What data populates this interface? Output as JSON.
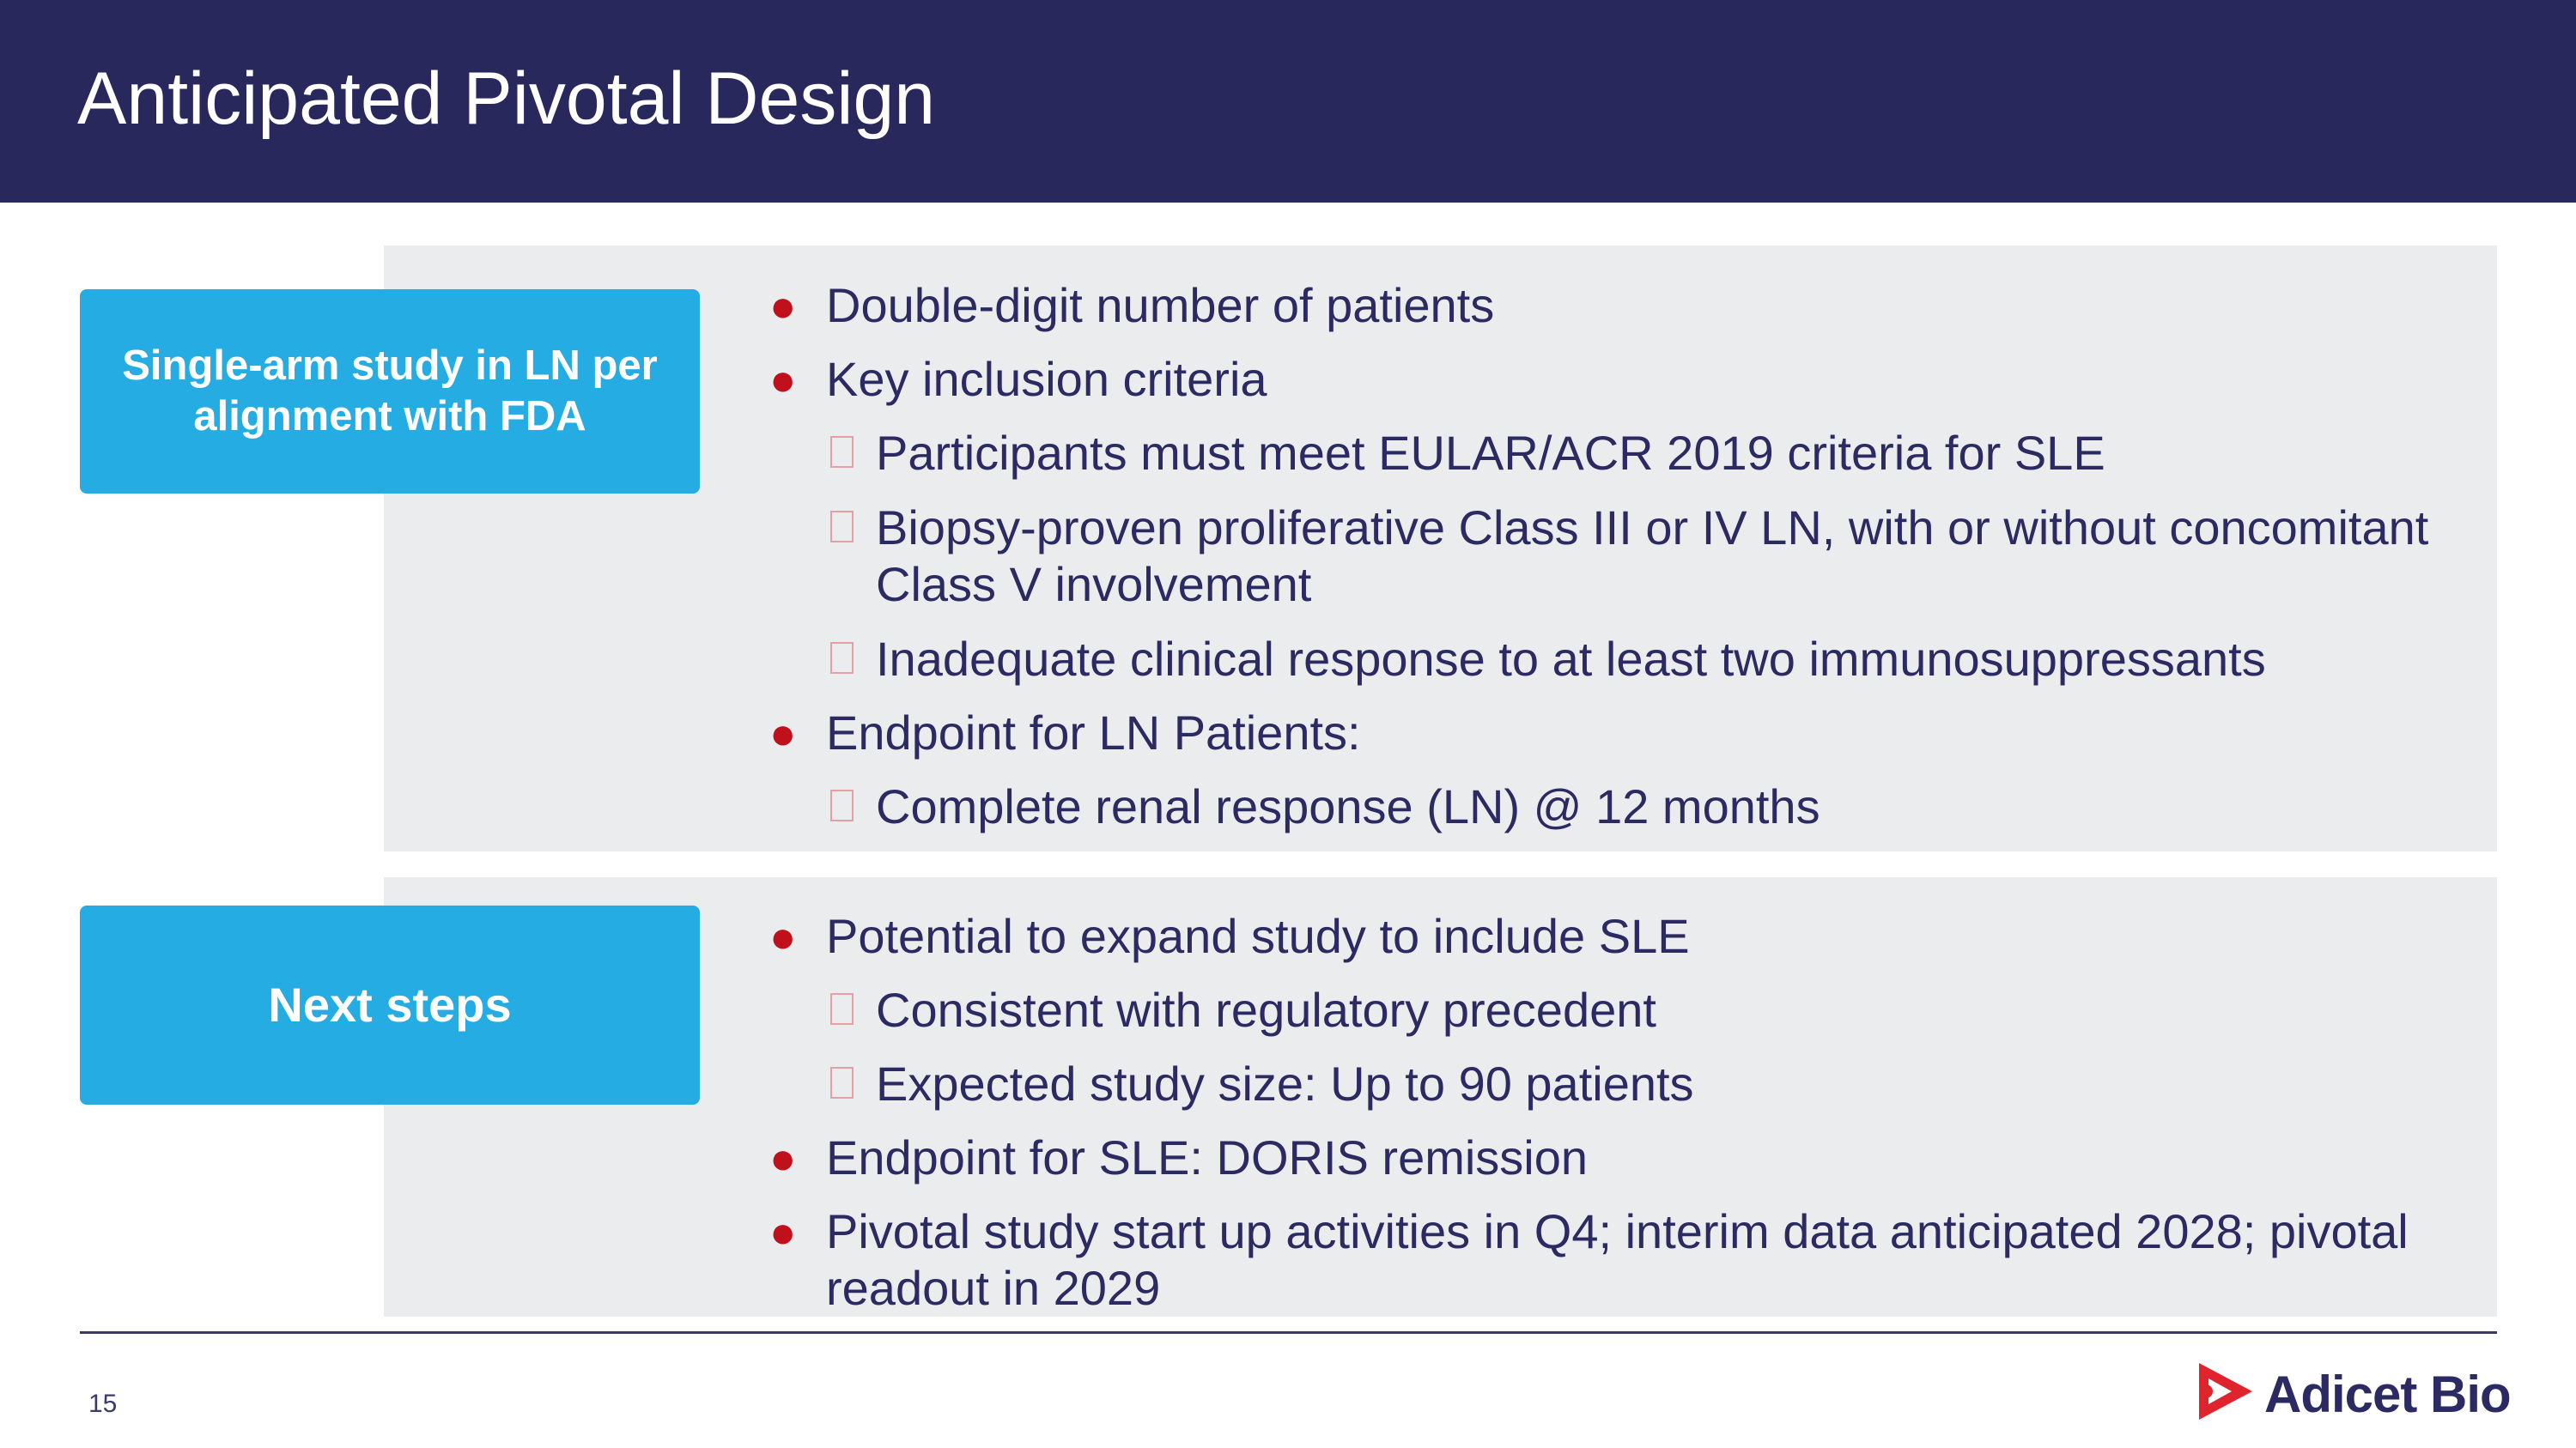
{
  "header": {
    "title": "Anticipated Pivotal Design"
  },
  "section1": {
    "label": "Single-arm study in LN per alignment with FDA",
    "items": [
      {
        "level": 1,
        "text": "Double-digit number of patients"
      },
      {
        "level": 1,
        "text": "Key inclusion criteria"
      },
      {
        "level": 2,
        "text": "Participants must meet EULAR/ACR 2019 criteria for SLE"
      },
      {
        "level": 2,
        "text": "Biopsy-proven proliferative Class III or IV LN, with or without concomitant",
        "cont": "Class V involvement"
      },
      {
        "level": 2,
        "text": "Inadequate clinical response to at least two immunosuppressants"
      },
      {
        "level": 1,
        "text": "Endpoint for LN Patients:"
      },
      {
        "level": 2,
        "text": "Complete renal response (LN) @ 12 months"
      }
    ]
  },
  "section2": {
    "label": "Next steps",
    "items": [
      {
        "level": 1,
        "text": "Potential to expand study to include SLE"
      },
      {
        "level": 2,
        "text": "Consistent with regulatory precedent"
      },
      {
        "level": 2,
        "text": "Expected study size: Up to 90 patients"
      },
      {
        "level": 1,
        "text": "Endpoint for SLE: DORIS remission"
      },
      {
        "level": 1,
        "text": "Pivotal study start up activities in Q4; interim data anticipated 2028; pivotal",
        "cont": "readout in 2029"
      }
    ]
  },
  "footer": {
    "page_number": "15",
    "logo_text": "Adicet Bio",
    "logo_color": "#e0242e"
  }
}
